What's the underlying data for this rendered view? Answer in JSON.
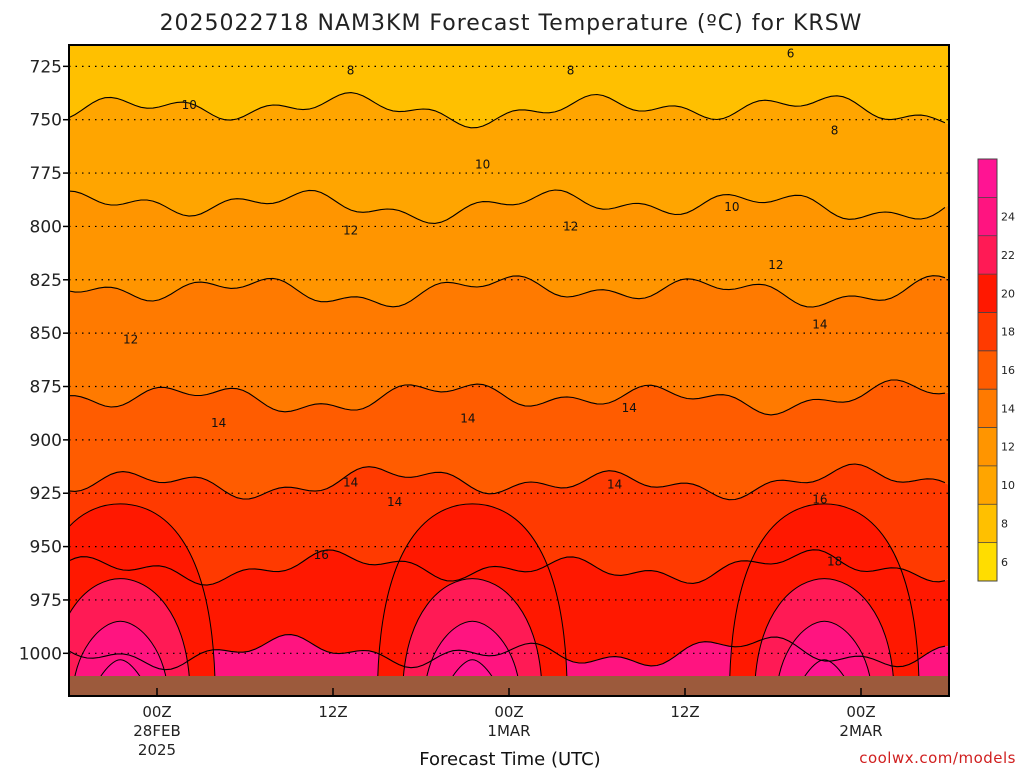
{
  "chart_data": {
    "type": "heatmap",
    "title": "2025022718 NAM3KM Forecast Temperature (ºC) for KRSW",
    "xlabel": "Forecast Time (UTC)",
    "ylabel": "",
    "y_axis": {
      "ticks": [
        725,
        750,
        775,
        800,
        825,
        850,
        875,
        900,
        925,
        950,
        975,
        1000
      ],
      "range": [
        715,
        1020
      ],
      "inverted": true,
      "grid": "dotted"
    },
    "x_axis": {
      "ticks": [
        {
          "line1": "00Z",
          "line2": "28FEB",
          "line3": "2025",
          "hour": 6
        },
        {
          "line1": "12Z",
          "line2": "",
          "line3": "",
          "hour": 18
        },
        {
          "line1": "00Z",
          "line2": "1MAR",
          "line3": "",
          "hour": 30
        },
        {
          "line1": "12Z",
          "line2": "",
          "line3": "",
          "hour": 42
        },
        {
          "line1": "00Z",
          "line2": "2MAR",
          "line3": "",
          "hour": 54
        }
      ],
      "range": [
        0,
        60
      ]
    },
    "colorbar": {
      "levels": [
        6,
        8,
        10,
        12,
        14,
        16,
        18,
        20,
        22,
        24
      ],
      "colors": [
        "#ffdd00",
        "#ffc000",
        "#ffa500",
        "#ff9500",
        "#ff7a00",
        "#ff5c00",
        "#ff3a00",
        "#ff1800",
        "#ff1a55",
        "#ff1480",
        "#ff1493"
      ],
      "grid": false
    },
    "contour_labels": [
      {
        "value": "8",
        "hour": 19.2,
        "p": 727
      },
      {
        "value": "8",
        "hour": 34.2,
        "p": 727
      },
      {
        "value": "6",
        "hour": 49.2,
        "p": 719
      },
      {
        "value": "8",
        "hour": 52.2,
        "p": 755
      },
      {
        "value": "10",
        "hour": 8.2,
        "p": 743
      },
      {
        "value": "10",
        "hour": 28.2,
        "p": 771
      },
      {
        "value": "10",
        "hour": 45.2,
        "p": 791
      },
      {
        "value": "12",
        "hour": 19.2,
        "p": 802
      },
      {
        "value": "12",
        "hour": 34.2,
        "p": 800
      },
      {
        "value": "12",
        "hour": 48.2,
        "p": 818
      },
      {
        "value": "12",
        "hour": 4.2,
        "p": 853
      },
      {
        "value": "14",
        "hour": 10.2,
        "p": 892
      },
      {
        "value": "14",
        "hour": 19.2,
        "p": 920
      },
      {
        "value": "14",
        "hour": 22.2,
        "p": 929
      },
      {
        "value": "14",
        "hour": 27.2,
        "p": 890
      },
      {
        "value": "14",
        "hour": 38.2,
        "p": 885
      },
      {
        "value": "14",
        "hour": 37.2,
        "p": 921
      },
      {
        "value": "14",
        "hour": 51.2,
        "p": 846
      },
      {
        "value": "16",
        "hour": 17.2,
        "p": 954
      },
      {
        "value": "16",
        "hour": 51.2,
        "p": 928
      },
      {
        "value": "18",
        "hour": 52.2,
        "p": 957
      }
    ],
    "bands_by_pressure": [
      {
        "p": 715,
        "temp": 6
      },
      {
        "p": 745,
        "temp": 8
      },
      {
        "p": 790,
        "temp": 10
      },
      {
        "p": 830,
        "temp": 12
      },
      {
        "p": 880,
        "temp": 14
      },
      {
        "p": 920,
        "temp": 16
      },
      {
        "p": 960,
        "temp": 18
      },
      {
        "p": 1000,
        "temp": 22
      }
    ]
  },
  "title_text": "2025022718 NAM3KM Forecast Temperature (ºC) for KRSW",
  "axis_title": "Forecast Time (UTC)",
  "credit": "coolwx.com/models",
  "colors": {
    "ground": "#9c5a3c",
    "axis": "#000000",
    "contour": "#000000"
  }
}
